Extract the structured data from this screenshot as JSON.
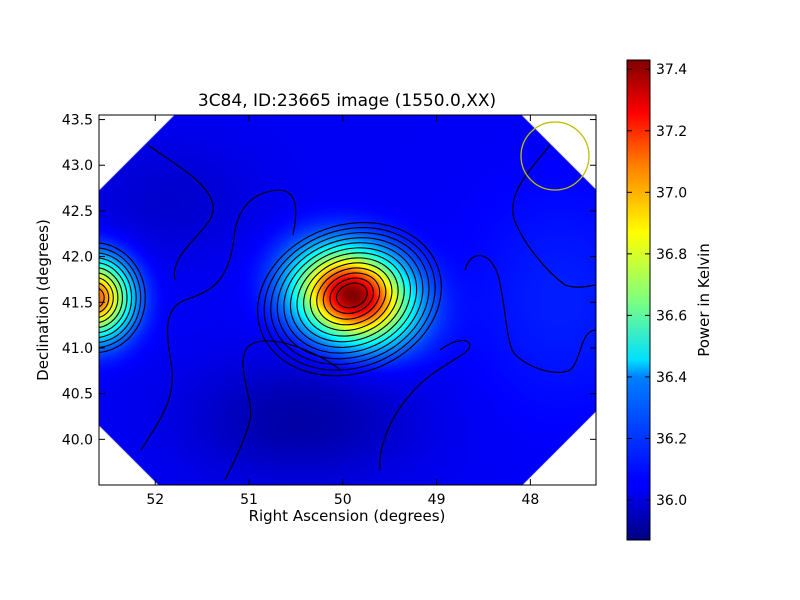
{
  "chart_data": {
    "type": "heatmap",
    "title": "3C84, ID:23665 image (1550.0,XX)",
    "xlabel": "Right Ascension (degrees)",
    "ylabel": "Declination (degrees)",
    "xlim": [
      52.6,
      47.3
    ],
    "ylim": [
      39.5,
      43.55
    ],
    "x_ticks": [
      52,
      51,
      50,
      49,
      48
    ],
    "y_ticks": [
      40.0,
      40.5,
      41.0,
      41.5,
      42.0,
      42.5,
      43.0,
      43.5
    ],
    "x_tick_labels": [
      "52",
      "51",
      "50",
      "49",
      "48"
    ],
    "y_tick_labels": [
      "40.0",
      "40.5",
      "41.0",
      "41.5",
      "42.0",
      "42.5",
      "43.0",
      "43.5"
    ],
    "colorbar": {
      "label": "Power in Kelvin",
      "min": 35.87,
      "max": 37.43,
      "ticks": [
        36.0,
        36.2,
        36.4,
        36.6,
        36.8,
        37.0,
        37.2,
        37.4
      ],
      "tick_labels": [
        "36.0",
        "36.2",
        "36.4",
        "36.6",
        "36.8",
        "37.0",
        "37.2",
        "37.4"
      ],
      "colormap": "jet"
    },
    "sources": [
      {
        "ra": 49.9,
        "dec": 41.58,
        "peak": 37.43,
        "role": "main peak"
      },
      {
        "ra": 52.65,
        "dec": 41.55,
        "peak": 37.1,
        "role": "edge peak"
      }
    ],
    "contour_levels": [
      36.1,
      36.2,
      36.3,
      36.4,
      36.5,
      36.6,
      36.7,
      36.8,
      36.9,
      37.0,
      37.1,
      37.2,
      37.3,
      37.4
    ],
    "beam_circle": {
      "ra": 47.55,
      "dec": 43.05,
      "color": "#bfbf00"
    },
    "colors": {
      "contour": "#000000",
      "frame": "#000000",
      "background": "#ffffff"
    }
  }
}
